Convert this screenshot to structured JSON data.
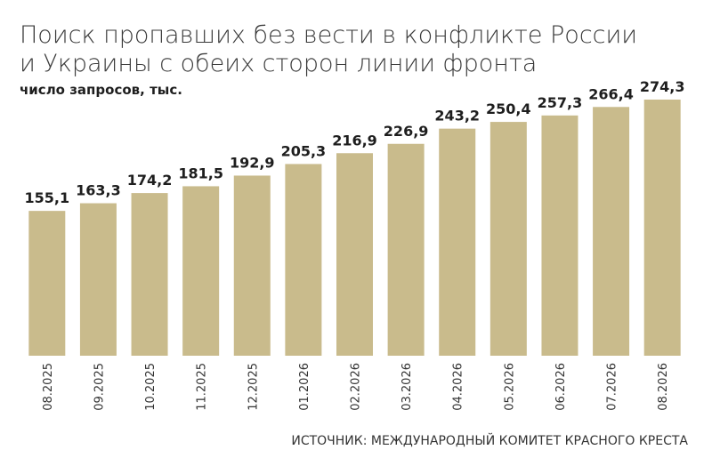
{
  "chart_data": {
    "type": "bar",
    "title": [
      "Поиск пропавших без вести в конфликте России",
      "и Украины с обеих сторон линии фронта"
    ],
    "subtitle": "число запросов, тыс.",
    "source": "ИСТОЧНИК: МЕЖДУНАРОДНЫЙ КОМИТЕТ КРАСНОГО КРЕСТА",
    "categories": [
      "08.2025",
      "09.2025",
      "10.2025",
      "11.2025",
      "12.2025",
      "01.2026",
      "02.2026",
      "03.2026",
      "04.2026",
      "05.2026",
      "06.2026",
      "07.2026",
      "08.2026"
    ],
    "values": [
      155.1,
      163.3,
      174.2,
      181.5,
      192.9,
      205.3,
      216.9,
      226.9,
      243.2,
      250.4,
      257.3,
      266.4,
      274.3
    ],
    "value_labels": [
      "155,1",
      "163,3",
      "174,2",
      "181,5",
      "192,9",
      "205,3",
      "216,9",
      "226,9",
      "243,2",
      "250,4",
      "257,3",
      "266,4",
      "274,3"
    ],
    "color": "#c9bb8c"
  }
}
